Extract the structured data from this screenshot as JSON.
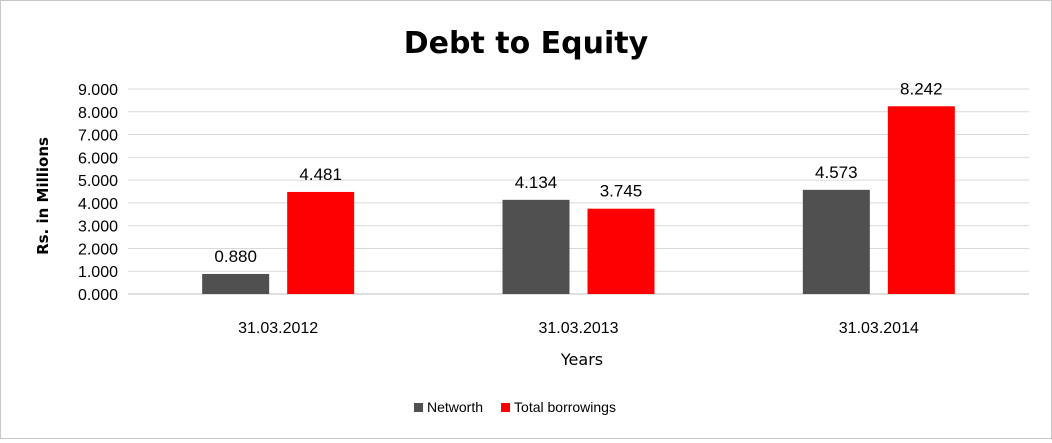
{
  "chart_data": {
    "type": "bar",
    "title": "Debt to Equity",
    "xlabel": "Years",
    "ylabel": "Rs. in Millions",
    "ylim": [
      0,
      9
    ],
    "yticks": [
      "0.000",
      "1.000",
      "2.000",
      "3.000",
      "4.000",
      "5.000",
      "6.000",
      "7.000",
      "8.000",
      "9.000"
    ],
    "grid": true,
    "legend_position": "bottom",
    "categories": [
      "31.03.2012",
      "31.03.2013",
      "31.03.2014"
    ],
    "series": [
      {
        "name": "Networth",
        "color": "#505050",
        "values": [
          0.88,
          4.134,
          4.573
        ],
        "labels": [
          "0.880",
          "4.134",
          "4.573"
        ]
      },
      {
        "name": "Total borrowings",
        "color": "#ff0000",
        "values": [
          4.481,
          3.745,
          8.242
        ],
        "labels": [
          "4.481",
          "3.745",
          "8.242"
        ]
      }
    ]
  }
}
